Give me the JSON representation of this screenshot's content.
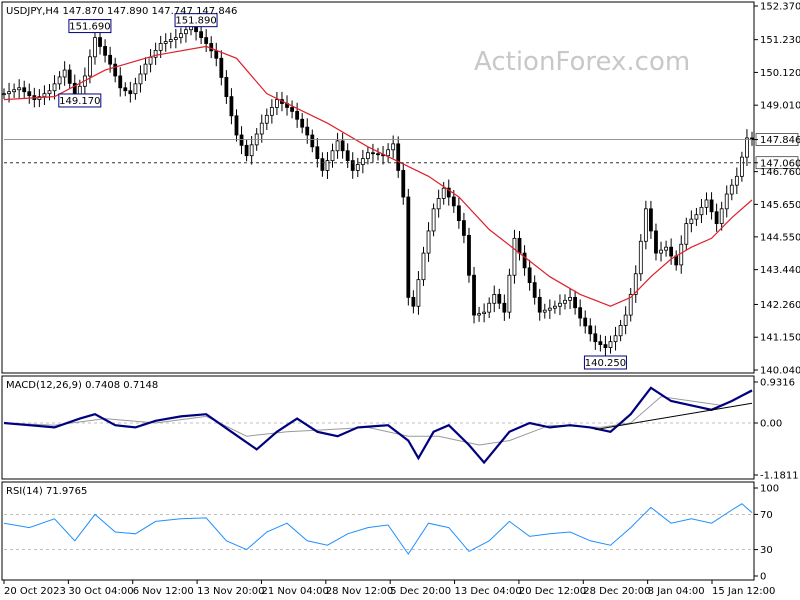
{
  "price_panel": {
    "symbol_header": "USDJPY,H4  147.870 147.890 147.747 147.846",
    "watermark": "ActionForex.com",
    "y_ticks": [
      "152.370",
      "151.230",
      "150.120",
      "149.010",
      "147.846",
      "147.060",
      "146.760",
      "145.650",
      "144.550",
      "143.440",
      "142.260",
      "141.150",
      "140.040"
    ],
    "current_price": "147.846",
    "support_level": "147.060",
    "annotations": [
      "151.690",
      "151.890",
      "149.170",
      "140.250"
    ]
  },
  "macd_panel": {
    "header": "MACD(12,26,9) 0.7408 0.7148",
    "y_ticks": [
      "0.9316",
      "0.00",
      "-1.1811"
    ]
  },
  "rsi_panel": {
    "header": "RSI(14) 71.9765",
    "y_ticks": [
      "100",
      "70",
      "30",
      "0"
    ]
  },
  "x_ticks": [
    "20 Oct 2023",
    "30 Oct 04:00",
    "6 Nov 12:00",
    "13 Nov 20:00",
    "21 Nov 04:00",
    "28 Nov 12:00",
    "5 Dec 20:00",
    "13 Dec 04:00",
    "20 Dec 12:00",
    "28 Dec 20:00",
    "8 Jan 04:00",
    "15 Jan 12:00"
  ],
  "colors": {
    "candles": "#000000",
    "ma": "#e0202a",
    "macd_main": "#000080",
    "macd_signal": "#999999",
    "rsi": "#1e90ff",
    "annotation_border": "#000080",
    "annotation_text": "#000080"
  },
  "chart_data": [
    {
      "type": "candlestick",
      "symbol": "USDJPY",
      "timeframe": "H4",
      "ylim": [
        140.04,
        152.37
      ],
      "ohlc_last": {
        "open": 147.87,
        "high": 147.89,
        "low": 147.747,
        "close": 147.846
      },
      "close_series": [
        {
          "x": 0,
          "y": 149.4
        },
        {
          "x": 3,
          "y": 149.6
        },
        {
          "x": 6,
          "y": 149.2
        },
        {
          "x": 9,
          "y": 149.5
        },
        {
          "x": 12,
          "y": 150.2
        },
        {
          "x": 14,
          "y": 149.3
        },
        {
          "x": 16,
          "y": 150.0
        },
        {
          "x": 18,
          "y": 151.3
        },
        {
          "x": 21,
          "y": 150.4
        },
        {
          "x": 23,
          "y": 149.6
        },
        {
          "x": 25,
          "y": 149.4
        },
        {
          "x": 28,
          "y": 150.4
        },
        {
          "x": 31,
          "y": 151.1
        },
        {
          "x": 34,
          "y": 151.3
        },
        {
          "x": 37,
          "y": 151.7
        },
        {
          "x": 40,
          "y": 151.1
        },
        {
          "x": 42,
          "y": 150.6
        },
        {
          "x": 44,
          "y": 149.3
        },
        {
          "x": 46,
          "y": 148.0
        },
        {
          "x": 48,
          "y": 147.3
        },
        {
          "x": 51,
          "y": 148.4
        },
        {
          "x": 54,
          "y": 149.2
        },
        {
          "x": 57,
          "y": 148.8
        },
        {
          "x": 60,
          "y": 148.0
        },
        {
          "x": 63,
          "y": 146.8
        },
        {
          "x": 66,
          "y": 147.8
        },
        {
          "x": 69,
          "y": 146.8
        },
        {
          "x": 72,
          "y": 147.4
        },
        {
          "x": 75,
          "y": 147.3
        },
        {
          "x": 77,
          "y": 147.7
        },
        {
          "x": 79,
          "y": 145.9
        },
        {
          "x": 80,
          "y": 142.5
        },
        {
          "x": 81,
          "y": 142.2
        },
        {
          "x": 83,
          "y": 144.0
        },
        {
          "x": 85,
          "y": 145.5
        },
        {
          "x": 87,
          "y": 146.2
        },
        {
          "x": 89,
          "y": 145.6
        },
        {
          "x": 91,
          "y": 144.6
        },
        {
          "x": 93,
          "y": 141.9
        },
        {
          "x": 95,
          "y": 142.0
        },
        {
          "x": 97,
          "y": 142.6
        },
        {
          "x": 99,
          "y": 142.0
        },
        {
          "x": 101,
          "y": 144.5
        },
        {
          "x": 103,
          "y": 143.5
        },
        {
          "x": 106,
          "y": 142.0
        },
        {
          "x": 109,
          "y": 142.2
        },
        {
          "x": 112,
          "y": 142.5
        },
        {
          "x": 114,
          "y": 141.8
        },
        {
          "x": 117,
          "y": 141.0
        },
        {
          "x": 119,
          "y": 140.8
        },
        {
          "x": 121,
          "y": 141.2
        },
        {
          "x": 123,
          "y": 141.9
        },
        {
          "x": 125,
          "y": 143.3
        },
        {
          "x": 127,
          "y": 145.5
        },
        {
          "x": 129,
          "y": 144.0
        },
        {
          "x": 131,
          "y": 144.2
        },
        {
          "x": 133,
          "y": 143.6
        },
        {
          "x": 135,
          "y": 145.0
        },
        {
          "x": 137,
          "y": 145.3
        },
        {
          "x": 139,
          "y": 145.8
        },
        {
          "x": 141,
          "y": 145.0
        },
        {
          "x": 143,
          "y": 146.0
        },
        {
          "x": 145,
          "y": 146.6
        },
        {
          "x": 147,
          "y": 147.9
        },
        {
          "x": 148,
          "y": 147.846
        }
      ],
      "moving_average": [
        {
          "x": 0,
          "y": 149.2
        },
        {
          "x": 10,
          "y": 149.3
        },
        {
          "x": 20,
          "y": 150.2
        },
        {
          "x": 30,
          "y": 150.7
        },
        {
          "x": 40,
          "y": 151.0
        },
        {
          "x": 46,
          "y": 150.6
        },
        {
          "x": 52,
          "y": 149.4
        },
        {
          "x": 58,
          "y": 148.9
        },
        {
          "x": 64,
          "y": 148.4
        },
        {
          "x": 72,
          "y": 147.6
        },
        {
          "x": 78,
          "y": 147.1
        },
        {
          "x": 84,
          "y": 146.6
        },
        {
          "x": 90,
          "y": 145.9
        },
        {
          "x": 96,
          "y": 144.8
        },
        {
          "x": 102,
          "y": 144.0
        },
        {
          "x": 108,
          "y": 143.2
        },
        {
          "x": 114,
          "y": 142.6
        },
        {
          "x": 120,
          "y": 142.2
        },
        {
          "x": 124,
          "y": 142.5
        },
        {
          "x": 128,
          "y": 143.2
        },
        {
          "x": 132,
          "y": 143.8
        },
        {
          "x": 136,
          "y": 144.2
        },
        {
          "x": 140,
          "y": 144.5
        },
        {
          "x": 144,
          "y": 145.2
        },
        {
          "x": 148,
          "y": 145.8
        }
      ],
      "horizontal_lines": [
        147.846,
        147.06
      ],
      "annotations": [
        {
          "text": "151.690",
          "x": 17,
          "y": 151.69
        },
        {
          "text": "151.890",
          "x": 38,
          "y": 151.89
        },
        {
          "text": "149.170",
          "x": 15,
          "y": 149.17
        },
        {
          "text": "140.250",
          "x": 119,
          "y": 140.25
        }
      ]
    },
    {
      "type": "line",
      "name": "MACD(12,26,9)",
      "ylim": [
        -1.1811,
        0.9316
      ],
      "last_values": {
        "main": 0.7408,
        "signal": 0.7148
      },
      "main": [
        {
          "x": 0,
          "y": 0.0
        },
        {
          "x": 5,
          "y": -0.05
        },
        {
          "x": 10,
          "y": -0.1
        },
        {
          "x": 15,
          "y": 0.1
        },
        {
          "x": 18,
          "y": 0.2
        },
        {
          "x": 22,
          "y": -0.05
        },
        {
          "x": 26,
          "y": -0.1
        },
        {
          "x": 30,
          "y": 0.05
        },
        {
          "x": 35,
          "y": 0.15
        },
        {
          "x": 40,
          "y": 0.2
        },
        {
          "x": 45,
          "y": -0.2
        },
        {
          "x": 50,
          "y": -0.6
        },
        {
          "x": 54,
          "y": -0.2
        },
        {
          "x": 58,
          "y": 0.1
        },
        {
          "x": 62,
          "y": -0.2
        },
        {
          "x": 66,
          "y": -0.3
        },
        {
          "x": 70,
          "y": -0.1
        },
        {
          "x": 76,
          "y": -0.05
        },
        {
          "x": 80,
          "y": -0.4
        },
        {
          "x": 82,
          "y": -0.8
        },
        {
          "x": 85,
          "y": -0.2
        },
        {
          "x": 88,
          "y": -0.05
        },
        {
          "x": 92,
          "y": -0.5
        },
        {
          "x": 95,
          "y": -0.9
        },
        {
          "x": 100,
          "y": -0.2
        },
        {
          "x": 104,
          "y": 0.0
        },
        {
          "x": 108,
          "y": -0.1
        },
        {
          "x": 112,
          "y": -0.05
        },
        {
          "x": 116,
          "y": -0.1
        },
        {
          "x": 120,
          "y": -0.2
        },
        {
          "x": 124,
          "y": 0.2
        },
        {
          "x": 128,
          "y": 0.8
        },
        {
          "x": 132,
          "y": 0.5
        },
        {
          "x": 136,
          "y": 0.4
        },
        {
          "x": 140,
          "y": 0.3
        },
        {
          "x": 144,
          "y": 0.5
        },
        {
          "x": 148,
          "y": 0.7408
        }
      ],
      "signal": [
        {
          "x": 0,
          "y": 0.0
        },
        {
          "x": 10,
          "y": -0.05
        },
        {
          "x": 20,
          "y": 0.1
        },
        {
          "x": 30,
          "y": 0.0
        },
        {
          "x": 40,
          "y": 0.15
        },
        {
          "x": 48,
          "y": -0.3
        },
        {
          "x": 56,
          "y": -0.2
        },
        {
          "x": 64,
          "y": -0.15
        },
        {
          "x": 72,
          "y": -0.1
        },
        {
          "x": 80,
          "y": -0.3
        },
        {
          "x": 86,
          "y": -0.3
        },
        {
          "x": 94,
          "y": -0.5
        },
        {
          "x": 100,
          "y": -0.4
        },
        {
          "x": 108,
          "y": -0.05
        },
        {
          "x": 118,
          "y": -0.1
        },
        {
          "x": 124,
          "y": 0.0
        },
        {
          "x": 130,
          "y": 0.6
        },
        {
          "x": 136,
          "y": 0.5
        },
        {
          "x": 142,
          "y": 0.4
        },
        {
          "x": 148,
          "y": 0.7148
        }
      ],
      "trendline": [
        {
          "x": 117,
          "y": -0.15
        },
        {
          "x": 148,
          "y": 0.45
        }
      ]
    },
    {
      "type": "line",
      "name": "RSI(14)",
      "ylim": [
        0,
        100
      ],
      "reference_levels": [
        70,
        30
      ],
      "last_value": 71.9765,
      "values": [
        {
          "x": 0,
          "y": 60
        },
        {
          "x": 5,
          "y": 55
        },
        {
          "x": 10,
          "y": 65
        },
        {
          "x": 14,
          "y": 40
        },
        {
          "x": 18,
          "y": 70
        },
        {
          "x": 22,
          "y": 50
        },
        {
          "x": 26,
          "y": 48
        },
        {
          "x": 30,
          "y": 62
        },
        {
          "x": 35,
          "y": 65
        },
        {
          "x": 40,
          "y": 66
        },
        {
          "x": 44,
          "y": 40
        },
        {
          "x": 48,
          "y": 30
        },
        {
          "x": 52,
          "y": 50
        },
        {
          "x": 56,
          "y": 60
        },
        {
          "x": 60,
          "y": 40
        },
        {
          "x": 64,
          "y": 35
        },
        {
          "x": 68,
          "y": 48
        },
        {
          "x": 72,
          "y": 55
        },
        {
          "x": 76,
          "y": 58
        },
        {
          "x": 80,
          "y": 25
        },
        {
          "x": 84,
          "y": 60
        },
        {
          "x": 88,
          "y": 55
        },
        {
          "x": 92,
          "y": 28
        },
        {
          "x": 96,
          "y": 40
        },
        {
          "x": 100,
          "y": 62
        },
        {
          "x": 104,
          "y": 45
        },
        {
          "x": 108,
          "y": 48
        },
        {
          "x": 112,
          "y": 50
        },
        {
          "x": 116,
          "y": 40
        },
        {
          "x": 120,
          "y": 35
        },
        {
          "x": 124,
          "y": 55
        },
        {
          "x": 128,
          "y": 78
        },
        {
          "x": 132,
          "y": 60
        },
        {
          "x": 136,
          "y": 65
        },
        {
          "x": 140,
          "y": 60
        },
        {
          "x": 144,
          "y": 75
        },
        {
          "x": 146,
          "y": 82
        },
        {
          "x": 148,
          "y": 72
        }
      ]
    }
  ]
}
